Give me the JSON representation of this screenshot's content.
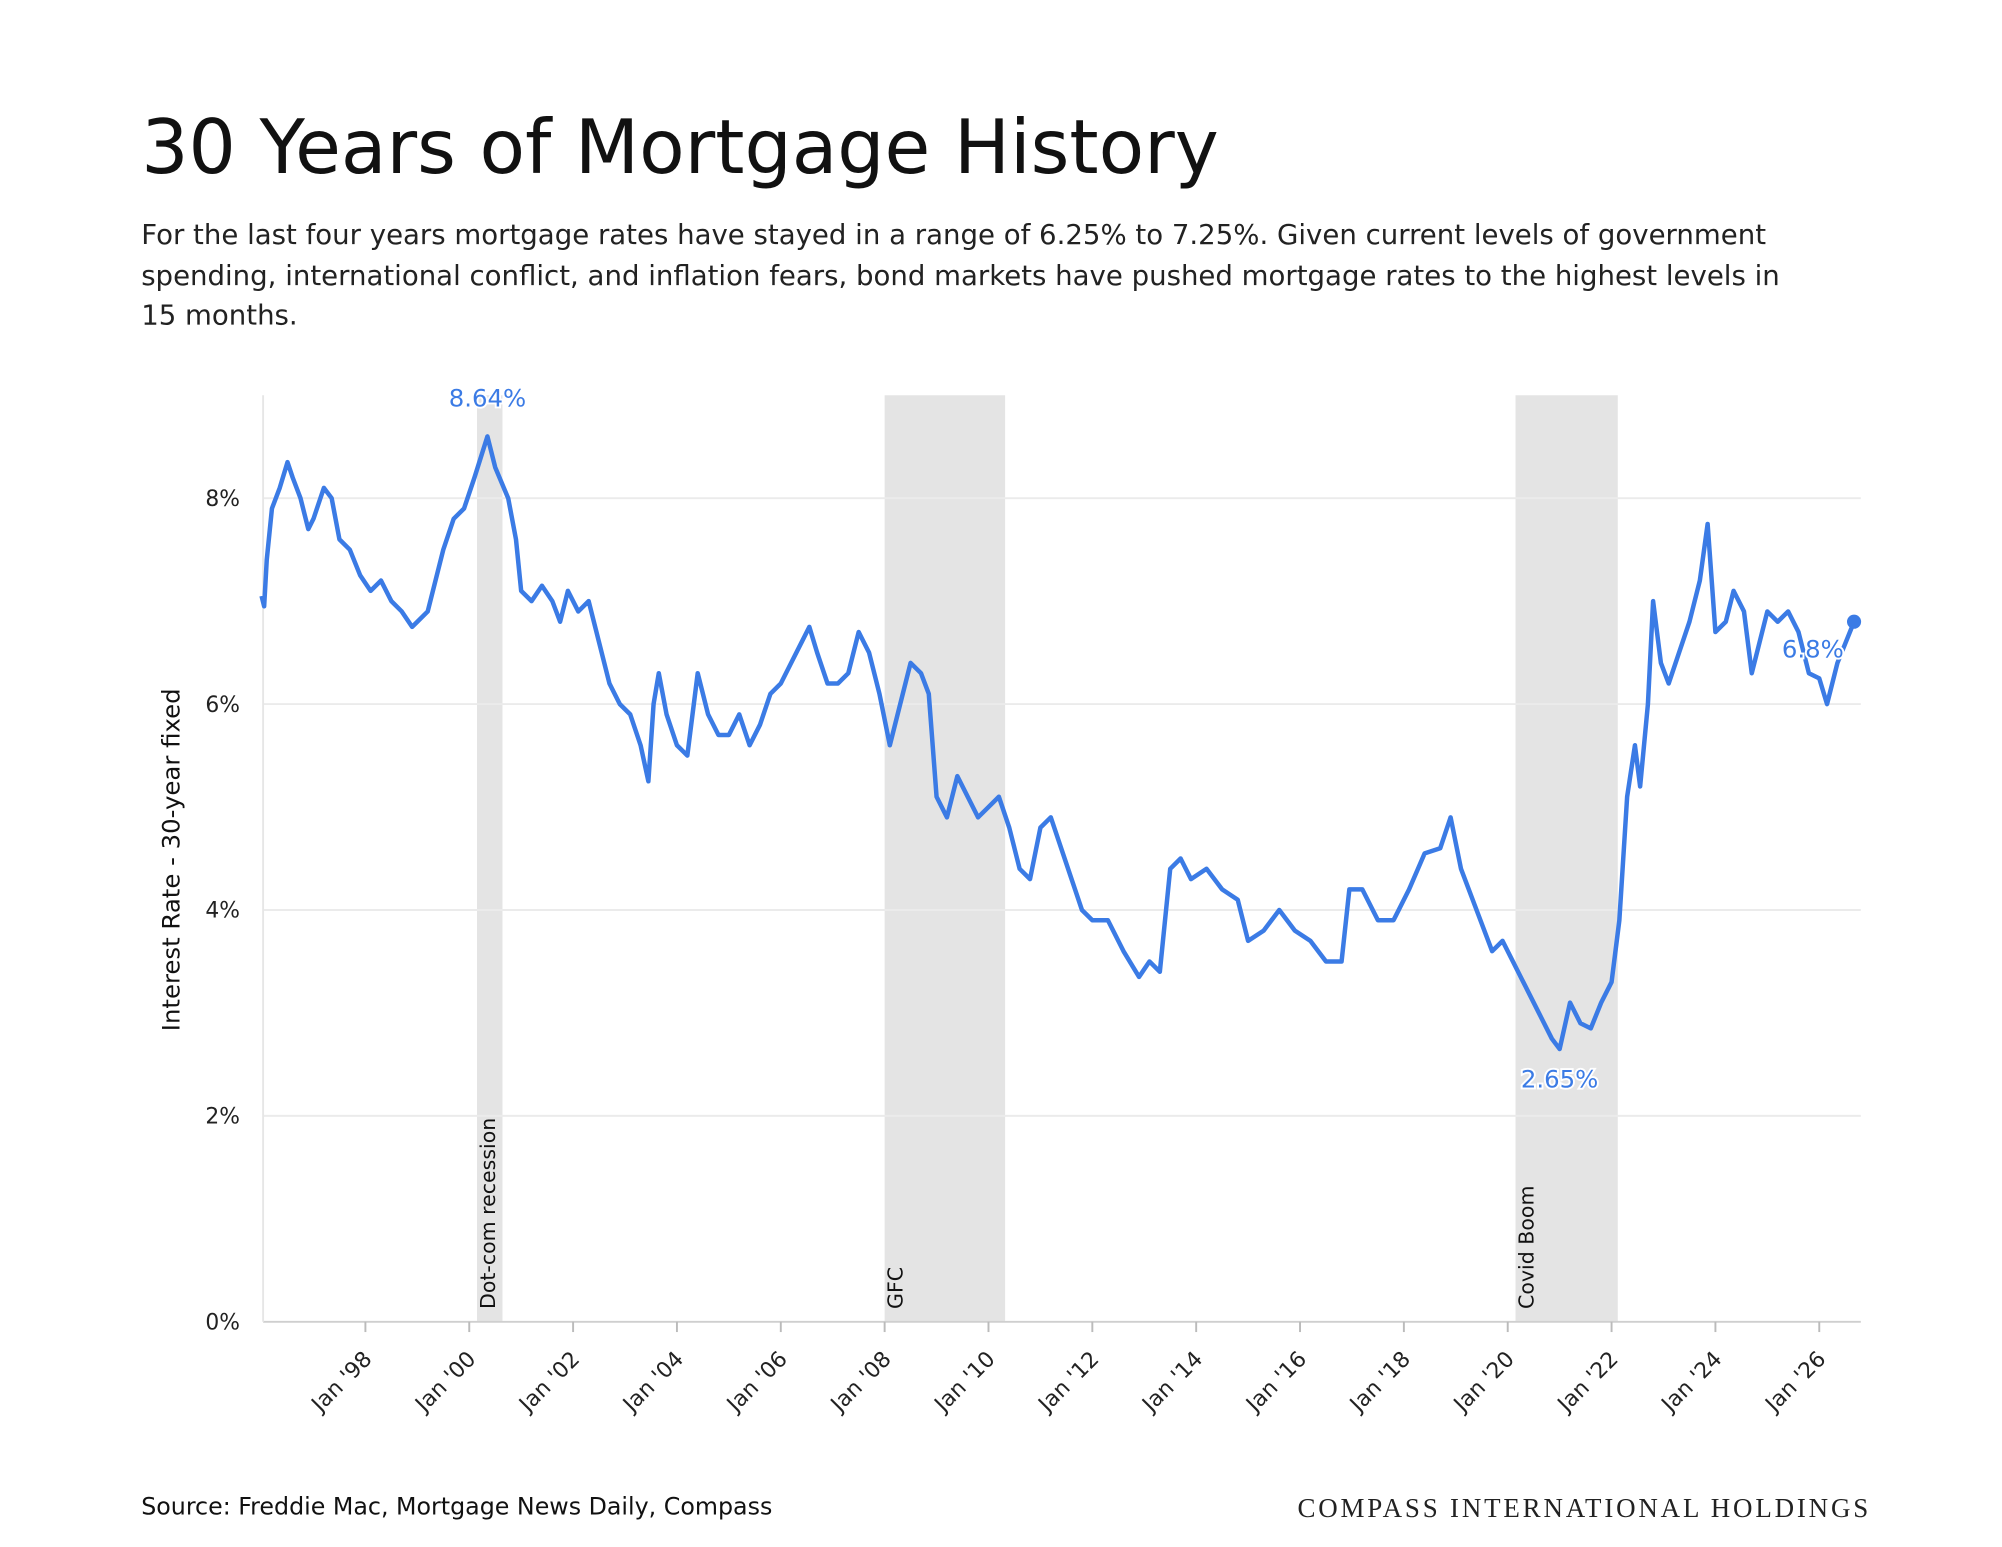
{
  "chart_data": {
    "type": "line",
    "title": "30 Years of Mortgage History",
    "subtitle": [
      "For the last four years mortgage rates have stayed in a range of 6.25% to 7.25%. Given current levels of government",
      "spending, international conflict, and inflation fears, bond markets have pushed mortgage rates to the highest levels in",
      "15 months."
    ],
    "y_label": "Interest Rate - 30-year fixed",
    "source": "Source: Freddie Mac, Mortgage News Daily, Compass",
    "brand": "COMPASS INTERNATIONAL HOLDINGS",
    "x": [
      1996.0,
      1996.05,
      1996.1,
      1996.2,
      1996.35,
      1996.5,
      1996.6,
      1996.75,
      1996.9,
      1997.0,
      1997.2,
      1997.35,
      1997.5,
      1997.7,
      1997.9,
      1998.1,
      1998.3,
      1998.5,
      1998.7,
      1998.9,
      1999.0,
      1999.2,
      1999.5,
      1999.7,
      1999.9,
      2000.1,
      2000.35,
      2000.5,
      2000.75,
      2000.9,
      2001.0,
      2001.2,
      2001.4,
      2001.6,
      2001.75,
      2001.9,
      2002.1,
      2002.3,
      2002.5,
      2002.7,
      2002.9,
      2003.1,
      2003.3,
      2003.45,
      2003.55,
      2003.65,
      2003.8,
      2004.0,
      2004.2,
      2004.4,
      2004.6,
      2004.8,
      2005.0,
      2005.2,
      2005.4,
      2005.6,
      2005.8,
      2006.0,
      2006.2,
      2006.4,
      2006.55,
      2006.7,
      2006.9,
      2007.1,
      2007.3,
      2007.5,
      2007.7,
      2007.9,
      2008.1,
      2008.3,
      2008.5,
      2008.7,
      2008.85,
      2009.0,
      2009.2,
      2009.4,
      2009.6,
      2009.8,
      2010.0,
      2010.2,
      2010.4,
      2010.6,
      2010.8,
      2011.0,
      2011.2,
      2011.4,
      2011.6,
      2011.8,
      2012.0,
      2012.3,
      2012.6,
      2012.9,
      2013.1,
      2013.3,
      2013.5,
      2013.7,
      2013.9,
      2014.2,
      2014.5,
      2014.8,
      2015.0,
      2015.3,
      2015.6,
      2015.9,
      2016.2,
      2016.5,
      2016.8,
      2016.95,
      2017.2,
      2017.5,
      2017.8,
      2018.1,
      2018.4,
      2018.7,
      2018.9,
      2019.1,
      2019.4,
      2019.7,
      2019.9,
      2020.1,
      2020.3,
      2020.6,
      2020.85,
      2021.0,
      2021.2,
      2021.4,
      2021.6,
      2021.8,
      2022.0,
      2022.15,
      2022.3,
      2022.45,
      2022.55,
      2022.7,
      2022.8,
      2022.95,
      2023.1,
      2023.3,
      2023.5,
      2023.7,
      2023.85,
      2024.0,
      2024.2,
      2024.35,
      2024.55,
      2024.7,
      2024.85,
      2025.0,
      2025.2,
      2025.4,
      2025.6,
      2025.8,
      2026.0,
      2026.15,
      2026.35,
      2026.67
    ],
    "series": [
      {
        "name": "30-year fixed",
        "color": "#3b7be5",
        "values": [
          7.05,
          6.95,
          7.4,
          7.9,
          8.1,
          8.35,
          8.2,
          8.0,
          7.7,
          7.8,
          8.1,
          8.0,
          7.6,
          7.5,
          7.25,
          7.1,
          7.2,
          7.0,
          6.9,
          6.75,
          6.8,
          6.9,
          7.5,
          7.8,
          7.9,
          8.2,
          8.6,
          8.3,
          8.0,
          7.6,
          7.1,
          7.0,
          7.15,
          7.0,
          6.8,
          7.1,
          6.9,
          7.0,
          6.6,
          6.2,
          6.0,
          5.9,
          5.6,
          5.25,
          6.0,
          6.3,
          5.9,
          5.6,
          5.5,
          6.3,
          5.9,
          5.7,
          5.7,
          5.9,
          5.6,
          5.8,
          6.1,
          6.2,
          6.4,
          6.6,
          6.75,
          6.5,
          6.2,
          6.2,
          6.3,
          6.7,
          6.5,
          6.1,
          5.6,
          6.0,
          6.4,
          6.3,
          6.1,
          5.1,
          4.9,
          5.3,
          5.1,
          4.9,
          5.0,
          5.1,
          4.8,
          4.4,
          4.3,
          4.8,
          4.9,
          4.6,
          4.3,
          4.0,
          3.9,
          3.9,
          3.6,
          3.35,
          3.5,
          3.4,
          4.4,
          4.5,
          4.3,
          4.4,
          4.2,
          4.1,
          3.7,
          3.8,
          4.0,
          3.8,
          3.7,
          3.5,
          3.5,
          4.2,
          4.2,
          3.9,
          3.9,
          4.2,
          4.55,
          4.6,
          4.9,
          4.4,
          4.0,
          3.6,
          3.7,
          3.5,
          3.3,
          3.0,
          2.75,
          2.65,
          3.1,
          2.9,
          2.85,
          3.1,
          3.3,
          3.9,
          5.1,
          5.6,
          5.2,
          6.0,
          7.0,
          6.4,
          6.2,
          6.5,
          6.8,
          7.2,
          7.75,
          6.7,
          6.8,
          7.1,
          6.9,
          6.3,
          6.6,
          6.9,
          6.8,
          6.9,
          6.7,
          6.3,
          6.25,
          6.0,
          6.4,
          6.8
        ]
      }
    ],
    "xlim": [
      1996.03,
      2026.8
    ],
    "xticks": [
      {
        "value": 1998,
        "label": "Jan '98"
      },
      {
        "value": 2000,
        "label": "Jan '00"
      },
      {
        "value": 2002,
        "label": "Jan '02"
      },
      {
        "value": 2004,
        "label": "Jan '04"
      },
      {
        "value": 2006,
        "label": "Jan '06"
      },
      {
        "value": 2008,
        "label": "Jan '08"
      },
      {
        "value": 2010,
        "label": "Jan '10"
      },
      {
        "value": 2012,
        "label": "Jan '12"
      },
      {
        "value": 2014,
        "label": "Jan '14"
      },
      {
        "value": 2016,
        "label": "Jan '16"
      },
      {
        "value": 2018,
        "label": "Jan '18"
      },
      {
        "value": 2020,
        "label": "Jan '20"
      },
      {
        "value": 2022,
        "label": "Jan '22"
      },
      {
        "value": 2024,
        "label": "Jan '24"
      },
      {
        "value": 2026,
        "label": "Jan '26"
      }
    ],
    "ylim": [
      0,
      9
    ],
    "yticks": [
      {
        "value": 0,
        "label": "0%"
      },
      {
        "value": 2,
        "label": "2%"
      },
      {
        "value": 4,
        "label": "4%"
      },
      {
        "value": 6,
        "label": "6%"
      },
      {
        "value": 8,
        "label": "8%"
      }
    ],
    "grid": true,
    "bands": [
      {
        "label": "Dot-com recession",
        "start": 2000.15,
        "end": 2000.64
      },
      {
        "label": "GFC",
        "start": 2008.0,
        "end": 2010.32
      },
      {
        "label": "Covid Boom",
        "start": 2020.15,
        "end": 2022.12
      }
    ],
    "annotations": [
      {
        "text": "8.64%",
        "x": 2000.35,
        "y": 8.64
      },
      {
        "text": "2.65%",
        "x": 2021.0,
        "y": 2.65
      },
      {
        "text": "6.8%",
        "x": 2026.67,
        "y": 6.8
      }
    ]
  }
}
